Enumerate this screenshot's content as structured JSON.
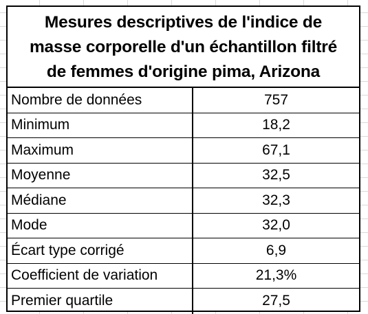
{
  "table": {
    "title_lines": [
      "Mesures descriptives de l'indice de",
      "masse corporelle d'un échantillon filtré",
      "de femmes d'origine pima, Arizona"
    ],
    "rows": [
      {
        "label": "Nombre de données",
        "value": "757"
      },
      {
        "label": "Minimum",
        "value": "18,2"
      },
      {
        "label": "Maximum",
        "value": "67,1"
      },
      {
        "label": "Moyenne",
        "value": "32,5"
      },
      {
        "label": "Médiane",
        "value": "32,3"
      },
      {
        "label": "Mode",
        "value": "32,0"
      },
      {
        "label": "Écart type corrigé",
        "value": "6,9"
      },
      {
        "label": "Coefficient de variation",
        "value": "21,3%"
      },
      {
        "label": "Premier quartile",
        "value": "27,5"
      }
    ]
  }
}
